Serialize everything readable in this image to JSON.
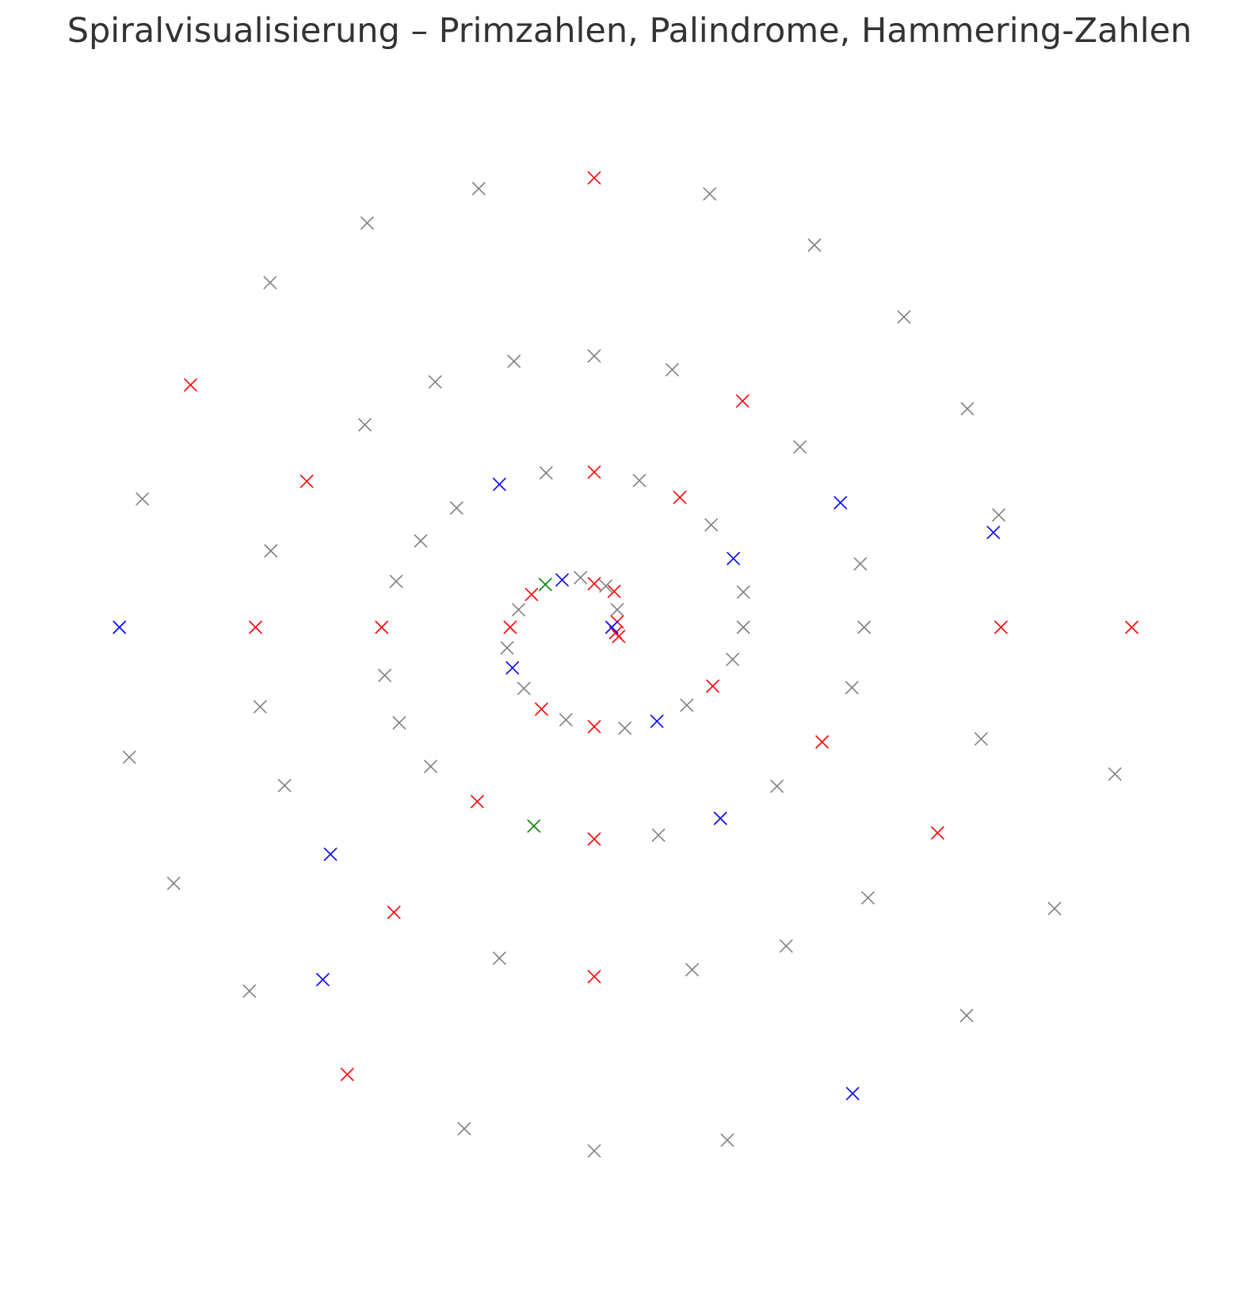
{
  "chart_data": {
    "type": "scatter",
    "title": "Spiralvisualisierung – Primzahlen, Palindrome, Hammering-Zahlen",
    "xlabel": "",
    "ylabel": "",
    "axes_visible": false,
    "grid": false,
    "marker": "x",
    "xlim": [
      -6.8,
      6.8
    ],
    "ylim": [
      -6.8,
      6.8
    ],
    "colors": {
      "red": "#ff0000",
      "blue": "#0000ff",
      "green": "#008000",
      "gray": "#808080"
    },
    "points": [
      {
        "x": 0.0,
        "y": 0.57,
        "color": "red"
      },
      {
        "x": 0.26,
        "y": 0.47,
        "color": "red"
      },
      {
        "x": 0.3,
        "y": 0.23,
        "color": "gray"
      },
      {
        "x": 0.3,
        "y": 0.07,
        "color": "red"
      },
      {
        "x": 0.28,
        "y": -0.07,
        "color": "red"
      },
      {
        "x": 0.32,
        "y": -0.12,
        "color": "red"
      },
      {
        "x": 0.23,
        "y": 0.0,
        "color": "blue"
      },
      {
        "x": 0.15,
        "y": 0.54,
        "color": "gray"
      },
      {
        "x": -0.18,
        "y": 0.65,
        "color": "gray"
      },
      {
        "x": -0.42,
        "y": 0.62,
        "color": "blue"
      },
      {
        "x": -0.64,
        "y": 0.56,
        "color": "green"
      },
      {
        "x": -0.82,
        "y": 0.43,
        "color": "red"
      },
      {
        "x": -0.99,
        "y": 0.23,
        "color": "gray"
      },
      {
        "x": -1.1,
        "y": 0.0,
        "color": "red"
      },
      {
        "x": -1.14,
        "y": -0.27,
        "color": "gray"
      },
      {
        "x": -1.07,
        "y": -0.53,
        "color": "blue"
      },
      {
        "x": -0.92,
        "y": -0.8,
        "color": "gray"
      },
      {
        "x": -0.69,
        "y": -1.07,
        "color": "red"
      },
      {
        "x": -0.37,
        "y": -1.21,
        "color": "gray"
      },
      {
        "x": 0.0,
        "y": -1.3,
        "color": "red"
      },
      {
        "x": 0.4,
        "y": -1.32,
        "color": "gray"
      },
      {
        "x": 0.82,
        "y": -1.23,
        "color": "blue"
      },
      {
        "x": 1.21,
        "y": -1.02,
        "color": "gray"
      },
      {
        "x": 1.55,
        "y": -0.77,
        "color": "red"
      },
      {
        "x": 1.81,
        "y": -0.42,
        "color": "gray"
      },
      {
        "x": 1.95,
        "y": 0.0,
        "color": "gray"
      },
      {
        "x": 1.95,
        "y": 0.46,
        "color": "gray"
      },
      {
        "x": 1.82,
        "y": 0.9,
        "color": "blue"
      },
      {
        "x": 1.53,
        "y": 1.34,
        "color": "gray"
      },
      {
        "x": 1.12,
        "y": 1.7,
        "color": "red"
      },
      {
        "x": 0.59,
        "y": 1.92,
        "color": "gray"
      },
      {
        "x": 0.0,
        "y": 2.03,
        "color": "red"
      },
      {
        "x": -0.63,
        "y": 2.02,
        "color": "gray"
      },
      {
        "x": -1.24,
        "y": 1.87,
        "color": "blue"
      },
      {
        "x": -1.8,
        "y": 1.56,
        "color": "gray"
      },
      {
        "x": -2.27,
        "y": 1.13,
        "color": "gray"
      },
      {
        "x": -2.59,
        "y": 0.6,
        "color": "gray"
      },
      {
        "x": -2.78,
        "y": 0.0,
        "color": "red"
      },
      {
        "x": -2.74,
        "y": -0.63,
        "color": "gray"
      },
      {
        "x": -2.55,
        "y": -1.25,
        "color": "gray"
      },
      {
        "x": -2.14,
        "y": -1.82,
        "color": "gray"
      },
      {
        "x": -1.53,
        "y": -2.28,
        "color": "red"
      },
      {
        "x": -0.79,
        "y": -2.6,
        "color": "green"
      },
      {
        "x": 0.0,
        "y": -2.77,
        "color": "red"
      },
      {
        "x": 0.84,
        "y": -2.72,
        "color": "gray"
      },
      {
        "x": 1.65,
        "y": -2.5,
        "color": "blue"
      },
      {
        "x": 2.39,
        "y": -2.08,
        "color": "gray"
      },
      {
        "x": 2.98,
        "y": -1.5,
        "color": "red"
      },
      {
        "x": 3.37,
        "y": -0.79,
        "color": "gray"
      },
      {
        "x": 3.53,
        "y": 0.0,
        "color": "gray"
      },
      {
        "x": 3.48,
        "y": 0.83,
        "color": "gray"
      },
      {
        "x": 3.22,
        "y": 1.63,
        "color": "blue"
      },
      {
        "x": 2.69,
        "y": 2.36,
        "color": "gray"
      },
      {
        "x": 1.94,
        "y": 2.96,
        "color": "red"
      },
      {
        "x": 1.02,
        "y": 3.37,
        "color": "gray"
      },
      {
        "x": 0.0,
        "y": 3.55,
        "color": "gray"
      },
      {
        "x": -1.05,
        "y": 3.48,
        "color": "gray"
      },
      {
        "x": -2.08,
        "y": 3.21,
        "color": "gray"
      },
      {
        "x": -3.0,
        "y": 2.65,
        "color": "gray"
      },
      {
        "x": -3.76,
        "y": 1.91,
        "color": "red"
      },
      {
        "x": -4.23,
        "y": 1.0,
        "color": "gray"
      },
      {
        "x": -4.43,
        "y": 0.0,
        "color": "red"
      },
      {
        "x": -4.37,
        "y": -1.04,
        "color": "gray"
      },
      {
        "x": -4.05,
        "y": -2.07,
        "color": "gray"
      },
      {
        "x": -3.45,
        "y": -2.97,
        "color": "blue"
      },
      {
        "x": -2.62,
        "y": -3.73,
        "color": "red"
      },
      {
        "x": -1.24,
        "y": -4.33,
        "color": "gray"
      },
      {
        "x": 0.0,
        "y": -4.57,
        "color": "red"
      },
      {
        "x": 1.28,
        "y": -4.48,
        "color": "gray"
      },
      {
        "x": 2.51,
        "y": -4.17,
        "color": "gray"
      },
      {
        "x": 3.58,
        "y": -3.54,
        "color": "gray"
      },
      {
        "x": 4.49,
        "y": -2.69,
        "color": "red"
      },
      {
        "x": 5.06,
        "y": -1.46,
        "color": "gray"
      },
      {
        "x": 5.32,
        "y": 0.0,
        "color": "red"
      },
      {
        "x": 5.29,
        "y": 1.47,
        "color": "gray"
      },
      {
        "x": 4.88,
        "y": 2.86,
        "color": "gray"
      },
      {
        "x": 4.05,
        "y": 4.06,
        "color": "gray"
      },
      {
        "x": 2.88,
        "y": 5.0,
        "color": "gray"
      },
      {
        "x": 1.51,
        "y": 5.67,
        "color": "gray"
      },
      {
        "x": 0.0,
        "y": 5.88,
        "color": "red"
      },
      {
        "x": -1.51,
        "y": 5.74,
        "color": "gray"
      },
      {
        "x": -2.97,
        "y": 5.29,
        "color": "gray"
      },
      {
        "x": -4.24,
        "y": 4.51,
        "color": "gray"
      },
      {
        "x": -5.28,
        "y": 3.17,
        "color": "red"
      },
      {
        "x": -5.91,
        "y": 1.68,
        "color": "gray"
      },
      {
        "x": -6.21,
        "y": 0.0,
        "color": "blue"
      },
      {
        "x": -6.08,
        "y": -1.7,
        "color": "gray"
      },
      {
        "x": -5.5,
        "y": -3.35,
        "color": "gray"
      },
      {
        "x": -4.51,
        "y": -4.76,
        "color": "gray"
      },
      {
        "x": -3.23,
        "y": -5.85,
        "color": "red"
      },
      {
        "x": -1.7,
        "y": -6.56,
        "color": "gray"
      },
      {
        "x": 0.0,
        "y": -6.85,
        "color": "gray"
      },
      {
        "x": 1.74,
        "y": -6.71,
        "color": "gray"
      },
      {
        "x": 3.38,
        "y": -6.1,
        "color": "blue"
      },
      {
        "x": 4.87,
        "y": -5.08,
        "color": "gray"
      },
      {
        "x": 6.02,
        "y": -3.68,
        "color": "gray"
      },
      {
        "x": 6.81,
        "y": -1.92,
        "color": "gray"
      },
      {
        "x": 7.03,
        "y": 0.0,
        "color": "red"
      },
      {
        "x": 5.22,
        "y": 1.24,
        "color": "blue"
      },
      {
        "x": -3.55,
        "y": -4.61,
        "color": "blue"
      }
    ]
  }
}
